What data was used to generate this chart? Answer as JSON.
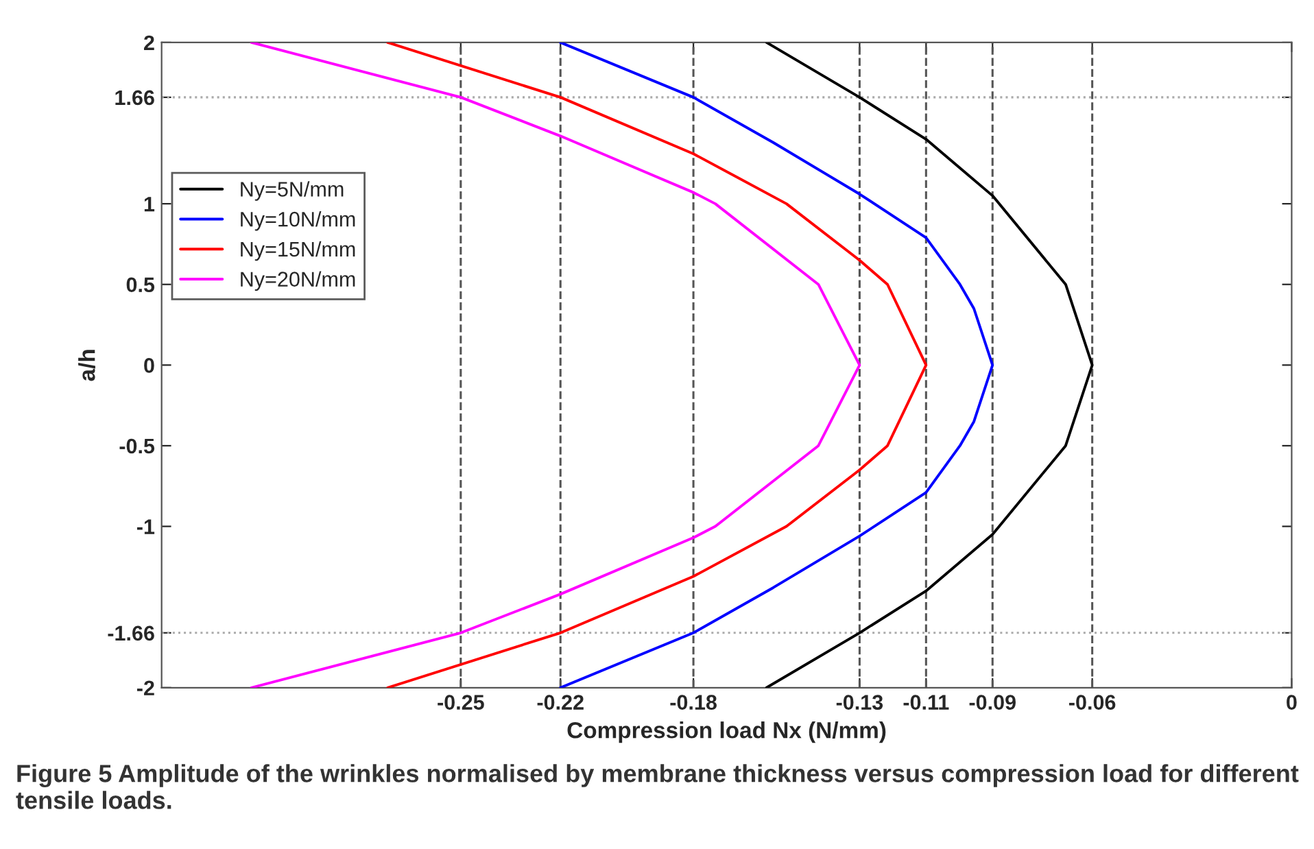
{
  "chart_data": {
    "type": "line",
    "xlabel": "Compression load Nx (N/mm)",
    "ylabel": "a/h",
    "series": [
      {
        "name": "Ny=5N/mm",
        "color": "#000000",
        "x": [
          -0.158,
          -0.13,
          -0.11,
          -0.09,
          -0.068,
          -0.06,
          -0.068,
          -0.09,
          -0.11,
          -0.13,
          -0.158
        ],
        "values": [
          -2,
          -1.66,
          -1.4,
          -1.05,
          -0.5,
          0,
          0.5,
          1.05,
          1.4,
          1.66,
          2
        ]
      },
      {
        "name": "Ny=10N/mm",
        "color": "#0000ff",
        "x": [
          -0.22,
          -0.18,
          -0.156,
          -0.13,
          -0.11,
          -0.0998,
          -0.0956,
          -0.09,
          -0.0956,
          -0.0998,
          -0.11,
          -0.13,
          -0.156,
          -0.18,
          -0.22
        ],
        "values": [
          -2,
          -1.66,
          -1.38,
          -1.06,
          -0.79,
          -0.5,
          -0.35,
          0,
          0.35,
          0.5,
          0.79,
          1.06,
          1.38,
          1.66,
          2
        ]
      },
      {
        "name": "Ny=15N/mm",
        "color": "#ff0000",
        "x": [
          -0.272,
          -0.22,
          -0.18,
          -0.152,
          -0.13,
          -0.1216,
          -0.11,
          -0.1216,
          -0.13,
          -0.152,
          -0.18,
          -0.22,
          -0.272
        ],
        "values": [
          -2,
          -1.66,
          -1.31,
          -1,
          -0.65,
          -0.5,
          0,
          0.5,
          0.65,
          1,
          1.31,
          1.66,
          2
        ]
      },
      {
        "name": "Ny=20N/mm",
        "color": "#ff00ff",
        "x": [
          -0.313,
          -0.25,
          -0.22,
          -0.18,
          -0.1734,
          -0.1424,
          -0.13,
          -0.1424,
          -0.1734,
          -0.18,
          -0.22,
          -0.25,
          -0.313
        ],
        "values": [
          -2,
          -1.66,
          -1.42,
          -1.07,
          -1,
          -0.5,
          0,
          0.5,
          1,
          1.07,
          1.42,
          1.66,
          2
        ]
      }
    ],
    "xlim": [
      -0.34,
      0
    ],
    "xticks": [
      -0.25,
      -0.22,
      -0.18,
      -0.13,
      -0.11,
      -0.09,
      -0.06,
      0
    ],
    "ylim": [
      -2,
      2
    ],
    "yticks": [
      -2,
      -1.66,
      -1,
      -0.5,
      0,
      0.5,
      1,
      1.66,
      2
    ],
    "ref_lines": [
      {
        "axis": "x",
        "value": -0.25,
        "line_style": "dashed",
        "color": "#555555"
      },
      {
        "axis": "x",
        "value": -0.22,
        "line_style": "dashed",
        "color": "#555555"
      },
      {
        "axis": "x",
        "value": -0.18,
        "line_style": "dashed",
        "color": "#555555"
      },
      {
        "axis": "x",
        "value": -0.13,
        "line_style": "dashed",
        "color": "#555555"
      },
      {
        "axis": "x",
        "value": -0.11,
        "line_style": "dashed",
        "color": "#555555"
      },
      {
        "axis": "x",
        "value": -0.09,
        "line_style": "dashed",
        "color": "#555555"
      },
      {
        "axis": "x",
        "value": -0.06,
        "line_style": "dashed",
        "color": "#555555"
      },
      {
        "axis": "y",
        "value": 1.66,
        "line_style": "dotted",
        "color": "#aaaaaa"
      },
      {
        "axis": "y",
        "value": -1.66,
        "line_style": "dotted",
        "color": "#aaaaaa"
      }
    ],
    "legend": "left",
    "grid": false,
    "marker": "none",
    "line_style": "solid",
    "annotations": [
      "Figure 5 Amplitude of the wrinkles normalised by membrane thickness versus compression load for different tensile loads."
    ]
  }
}
